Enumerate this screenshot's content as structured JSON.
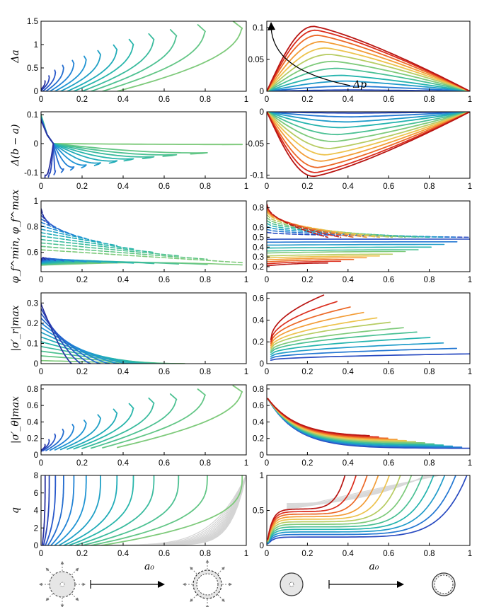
{
  "figure": {
    "shared_xlabel": "a₀",
    "colormap_low_to_high": [
      "#2a1a80",
      "#2950c8",
      "#1f8fd8",
      "#21b3b0",
      "#56c48c",
      "#a6cf6a",
      "#f2c24c",
      "#f48a2c",
      "#e0301e",
      "#b01010"
    ]
  },
  "chart_data": [
    {
      "id": "row1-left",
      "type": "line",
      "ylabel": "Δa",
      "xlabel": "",
      "xlim": [
        0,
        1
      ],
      "ylim": [
        0,
        1.5
      ],
      "xticks": [
        "0",
        "0.2",
        "0.4",
        "0.6",
        "0.8",
        "1"
      ],
      "yticks": [
        "0",
        "0.5",
        "1",
        "1.5"
      ],
      "family": "c_shaped",
      "curve_count": 13,
      "series_description_values": {
        "tip_x": [
          0.98,
          0.8,
          0.66,
          0.55,
          0.45,
          0.37,
          0.29,
          0.22,
          0.16,
          0.11,
          0.07,
          0.04,
          0.02
        ],
        "tip_y_frac": [
          1.0,
          0.95,
          0.88,
          0.82,
          0.74,
          0.66,
          0.58,
          0.5,
          0.44,
          0.37,
          0.3,
          0.22,
          0.15
        ]
      }
    },
    {
      "id": "row1-right",
      "type": "line",
      "ylabel": "",
      "xlabel": "",
      "xlim": [
        0,
        1
      ],
      "ylim": [
        0,
        0.11
      ],
      "xticks": [
        "0",
        "0.2",
        "0.4",
        "0.6",
        "0.8",
        "1"
      ],
      "yticks": [
        "0",
        "0.05",
        "0.1"
      ],
      "family": "humps",
      "curve_count": 12,
      "peak_values": [
        0.002,
        0.008,
        0.016,
        0.025,
        0.036,
        0.047,
        0.058,
        0.068,
        0.078,
        0.088,
        0.096,
        0.102
      ],
      "peak_x": [
        0.45,
        0.42,
        0.4,
        0.37,
        0.35,
        0.33,
        0.31,
        0.29,
        0.27,
        0.25,
        0.24,
        0.23
      ],
      "annotation": "Δp"
    },
    {
      "id": "row2-left",
      "type": "line",
      "ylabel": "Δ(b − a)",
      "xlabel": "",
      "xlim": [
        0,
        1
      ],
      "ylim": [
        -0.12,
        0.11
      ],
      "xticks": [
        "0",
        "0.2",
        "0.4",
        "0.6",
        "0.8",
        "1"
      ],
      "yticks": [
        "-0.1",
        "0",
        "0.1"
      ],
      "family": "c_shaped_negative",
      "curve_count": 13
    },
    {
      "id": "row2-right",
      "type": "line",
      "ylabel": "",
      "xlabel": "",
      "xlim": [
        0,
        1
      ],
      "ylim": [
        -0.105,
        0
      ],
      "xticks": [
        "0",
        "0.2",
        "0.4",
        "0.6",
        "0.8",
        "1"
      ],
      "yticks": [
        "-0.1",
        "-0.05",
        "0"
      ],
      "family": "humps_negative",
      "curve_count": 12,
      "min_values": [
        -0.002,
        -0.008,
        -0.016,
        -0.025,
        -0.036,
        -0.047,
        -0.058,
        -0.068,
        -0.078,
        -0.088,
        -0.096,
        -0.102
      ]
    },
    {
      "id": "row3-left",
      "type": "line",
      "ylabel": "φ_f^min, φ_f^max",
      "xlabel": "",
      "xlim": [
        0,
        1
      ],
      "ylim": [
        0.45,
        1.0
      ],
      "xticks": [
        "0",
        "0.2",
        "0.4",
        "0.6",
        "0.8",
        "1"
      ],
      "yticks": [
        "0.6",
        "0.8",
        "1"
      ],
      "family": "phi_pairs",
      "curve_count": 13
    },
    {
      "id": "row3-right",
      "type": "line",
      "ylabel": "",
      "xlabel": "",
      "xlim": [
        0,
        1
      ],
      "ylim": [
        0.15,
        0.87
      ],
      "xticks": [
        "0",
        "0.2",
        "0.4",
        "0.6",
        "0.8",
        "1"
      ],
      "yticks": [
        "0.2",
        "0.3",
        "0.4",
        "0.5",
        "0.6",
        "0.8"
      ],
      "family": "phi_fan",
      "curve_count": 12,
      "lower_end_values": [
        0.48,
        0.45,
        0.42,
        0.39,
        0.36,
        0.34,
        0.31,
        0.29,
        0.27,
        0.25,
        0.23,
        0.21
      ],
      "upper_start_values": [
        0.55,
        0.58,
        0.61,
        0.64,
        0.67,
        0.7,
        0.73,
        0.76,
        0.78,
        0.8,
        0.82,
        0.84
      ]
    },
    {
      "id": "row4-left",
      "type": "line",
      "ylabel": "|σ′_r|max",
      "xlabel": "",
      "xlim": [
        0,
        1
      ],
      "ylim": [
        0,
        0.35
      ],
      "xticks": [
        "0",
        "0.2",
        "0.4",
        "0.6",
        "0.8",
        "1"
      ],
      "yticks": [
        "0",
        "0.1",
        "0.2",
        "0.3"
      ],
      "family": "decay",
      "curve_count": 13
    },
    {
      "id": "row4-right",
      "type": "line",
      "ylabel": "",
      "xlabel": "",
      "xlim": [
        0,
        1
      ],
      "ylim": [
        0,
        0.65
      ],
      "xticks": [
        "0",
        "0.2",
        "0.4",
        "0.6",
        "0.8",
        "1"
      ],
      "yticks": [
        "0",
        "0.2",
        "0.4",
        "0.6"
      ],
      "family": "rising",
      "curve_count": 12,
      "end_values": [
        0.09,
        0.14,
        0.19,
        0.24,
        0.29,
        0.33,
        0.38,
        0.42,
        0.47,
        0.52,
        0.57,
        0.63
      ]
    },
    {
      "id": "row5-left",
      "type": "line",
      "ylabel": "|σ′_θ|max",
      "xlabel": "",
      "xlim": [
        0,
        1
      ],
      "ylim": [
        0,
        0.85
      ],
      "xticks": [
        "0",
        "0.2",
        "0.4",
        "0.6",
        "0.8",
        "1"
      ],
      "yticks": [
        "0",
        "0.2",
        "0.4",
        "0.6",
        "0.8"
      ],
      "family": "c_shaped_sigma",
      "curve_count": 13
    },
    {
      "id": "row5-right",
      "type": "line",
      "ylabel": "",
      "xlabel": "",
      "xlim": [
        0,
        1
      ],
      "ylim": [
        0,
        0.85
      ],
      "xticks": [
        "0",
        "0.2",
        "0.4",
        "0.6",
        "0.8",
        "1"
      ],
      "yticks": [
        "0",
        "0.2",
        "0.4",
        "0.6",
        "0.8"
      ],
      "family": "sigma_theta_right",
      "curve_count": 12
    },
    {
      "id": "row6-left",
      "type": "line",
      "ylabel": "q",
      "xlabel": "a₀",
      "xlim": [
        0,
        1
      ],
      "ylim": [
        0,
        8
      ],
      "xticks": [
        "0",
        "0.2",
        "0.4",
        "0.6",
        "0.8",
        "1"
      ],
      "yticks": [
        "0",
        "2",
        "4",
        "6",
        "8"
      ],
      "family": "q_left",
      "curve_count": 13,
      "grey_curve_count": 14
    },
    {
      "id": "row6-right",
      "type": "line",
      "ylabel": "",
      "xlabel": "a₀",
      "xlim": [
        0,
        1
      ],
      "ylim": [
        0,
        1
      ],
      "xticks": [
        "0",
        "0.2",
        "0.4",
        "0.6",
        "0.8",
        "1"
      ],
      "yticks": [
        "0",
        "0.5",
        "1"
      ],
      "family": "q_right",
      "curve_count": 12,
      "grey_curve_count": 12
    }
  ]
}
